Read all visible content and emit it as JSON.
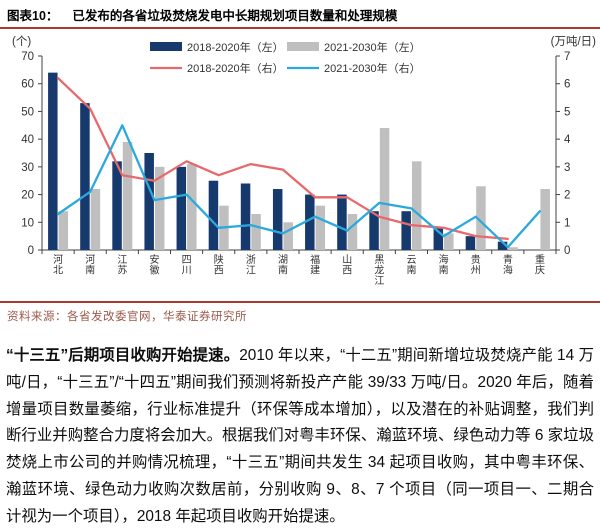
{
  "figure": {
    "label": "图表10：",
    "title": "已发布的各省垃圾焚烧发电中长期规划项目数量和处理规模",
    "source": "资料来源：各省发改委官网，华泰证券研究所"
  },
  "chart_data": {
    "type": "combo-bar-line",
    "title": "已发布的各省垃圾焚烧发电中长期规划项目数量和处理规模",
    "categories": [
      "河北",
      "河南",
      "江苏",
      "安徽",
      "四川",
      "陕西",
      "浙江",
      "湖南",
      "福建",
      "山西",
      "黑龙江",
      "云南",
      "海南",
      "贵州",
      "青海",
      "重庆"
    ],
    "left_axis": {
      "unit": "(个)",
      "min": 0,
      "max": 70,
      "step": 10
    },
    "right_axis": {
      "unit": "(万吨/日)",
      "min": 0,
      "max": 7,
      "step": 1
    },
    "grid": false,
    "legend_position": "top-center",
    "bar_series": [
      {
        "name": "2018-2020年（左）",
        "axis": "left",
        "color": "#173A6E",
        "values": [
          64,
          53,
          32,
          35,
          30,
          25,
          24,
          22,
          20,
          20,
          14,
          14,
          8,
          5,
          3,
          0
        ]
      },
      {
        "name": "2021-2030年（左）",
        "axis": "left",
        "color": "#BFBFBF",
        "values": [
          14,
          22,
          39,
          30,
          31,
          16,
          13,
          10,
          16,
          13,
          44,
          32,
          6,
          23,
          1,
          22
        ]
      }
    ],
    "line_series": [
      {
        "name": "2018-2020年（右）",
        "axis": "right",
        "color": "#E7696C",
        "values": [
          6.2,
          5.1,
          2.7,
          2.5,
          3.2,
          2.7,
          3.1,
          2.9,
          1.9,
          1.9,
          1.2,
          0.9,
          0.8,
          0.5,
          0.4,
          null
        ]
      },
      {
        "name": "2021-2030年（右）",
        "axis": "right",
        "color": "#2BA9DD",
        "values": [
          1.3,
          2.1,
          4.5,
          1.8,
          2.0,
          0.8,
          0.9,
          0.6,
          1.2,
          0.7,
          1.7,
          1.5,
          0.5,
          1.2,
          0.1,
          1.4
        ]
      }
    ]
  },
  "paragraph": {
    "lead_bold": "“十三五”后期项目收购开始提速。",
    "body": "2010 年以来，“十二五”期间新增垃圾焚烧产能 14 万吨/日，“十三五”/“十四五”期间我们预测将新投产产能 39/33 万吨/日。2020 年后，随着增量项目数量萎缩，行业标准提升（环保等成本增加），以及潜在的补贴调整，我们判断行业并购整合力度将会加大。根据我们对粤丰环保、瀚蓝环境、绿色动力等 6 家垃圾焚烧上市公司的并购情况梳理，“十三五”期间共发生 34 起项目收购，其中粤丰环保、瀚蓝环境、绿色动力收购次数居前，分别收购 9、8、7 个项目（同一项目一、二期合计视为一个项目），2018 年起项目收购开始提速。"
  },
  "colors": {
    "rule": "#A93A2E",
    "axis": "#404040",
    "tick_text": "#333333",
    "source_text": "#9C5A4A"
  }
}
